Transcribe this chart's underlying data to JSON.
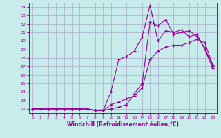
{
  "xlabel": "Windchill (Refroidissement éolien,°C)",
  "bg_color": "#c8ecec",
  "line_color": "#990099",
  "grid_color": "#aaaacc",
  "xlim": [
    -0.5,
    23.5
  ],
  "ylim": [
    21.5,
    34.5
  ],
  "xticks": [
    0,
    1,
    2,
    3,
    4,
    5,
    6,
    7,
    8,
    9,
    10,
    11,
    12,
    13,
    14,
    15,
    16,
    17,
    18,
    19,
    20,
    21,
    22,
    23
  ],
  "yticks": [
    22,
    23,
    24,
    25,
    26,
    27,
    28,
    29,
    30,
    31,
    32,
    33,
    34
  ],
  "line1_x": [
    0,
    1,
    2,
    3,
    4,
    5,
    6,
    7,
    8,
    9,
    10,
    11,
    12,
    13,
    14,
    15,
    16,
    17,
    18,
    19,
    20,
    21,
    22,
    23
  ],
  "line1_y": [
    22,
    22,
    22,
    22,
    22,
    22,
    22,
    22,
    21.8,
    21.8,
    22.5,
    22.8,
    23.2,
    23.5,
    24.5,
    27.8,
    28.8,
    29.3,
    29.5,
    29.5,
    29.8,
    30.2,
    29.8,
    27.2
  ],
  "line2_x": [
    0,
    1,
    2,
    3,
    4,
    5,
    6,
    7,
    8,
    9,
    10,
    11,
    12,
    13,
    14,
    15,
    16,
    17,
    18,
    19,
    20,
    21,
    22,
    23
  ],
  "line2_y": [
    22,
    22,
    22,
    22,
    22,
    22,
    22,
    22,
    21.8,
    21.8,
    24.0,
    27.8,
    28.2,
    28.8,
    30.5,
    34.2,
    30.0,
    31.2,
    31.0,
    31.3,
    30.5,
    30.8,
    29.0,
    26.8
  ],
  "line3_x": [
    0,
    1,
    2,
    3,
    4,
    5,
    6,
    7,
    8,
    9,
    10,
    11,
    12,
    13,
    14,
    15,
    16,
    17,
    18,
    19,
    20,
    21,
    22,
    23
  ],
  "line3_y": [
    22,
    22,
    22,
    22,
    22,
    22,
    22,
    22,
    21.8,
    21.8,
    22.0,
    22.2,
    22.5,
    23.8,
    25.0,
    32.2,
    31.8,
    32.5,
    30.8,
    31.0,
    31.2,
    30.5,
    29.2,
    27.0
  ]
}
